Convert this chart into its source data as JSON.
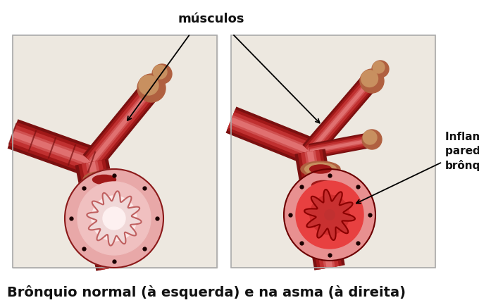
{
  "caption": "Brônquio normal (à esquerda) e na asma (à direita)",
  "annotation_musculos": "músculos",
  "annotation_inflamacao": "Inflamação da\nparede do\nbrônquio",
  "bg_color": "#ffffff",
  "caption_fontsize": 14,
  "annotation_fontsize": 13,
  "inflamacao_fontsize": 11,
  "fig_width": 6.8,
  "fig_height": 4.33,
  "dpi": 100
}
